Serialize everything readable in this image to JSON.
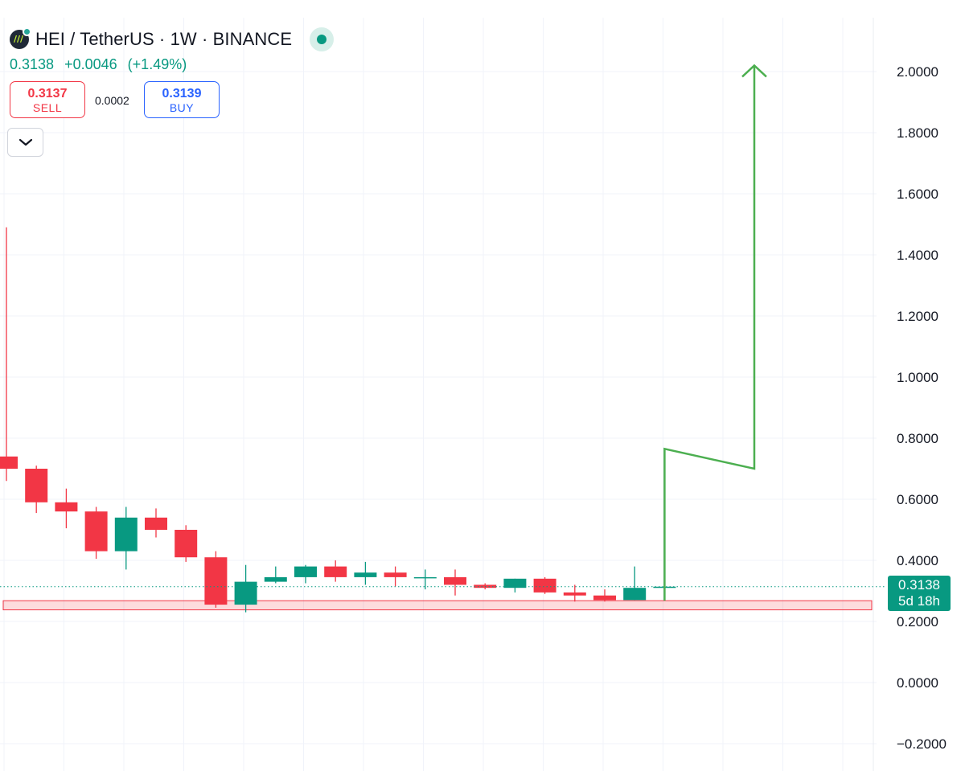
{
  "header": {
    "title": "HEI / TetherUS · 1W · BINANCE",
    "last": "0.3138",
    "change": "+0.0046",
    "change_pct": "(+1.49%)",
    "sell_price": "0.3137",
    "sell_label": "SELL",
    "spread": "0.0002",
    "buy_price": "0.3139",
    "buy_label": "BUY"
  },
  "icons": {
    "logo": "hei-coin-logo",
    "status": "market-open-dot",
    "collapse": "chevron-down-icon"
  },
  "price_tag": {
    "price": "0.3138",
    "countdown": "5d 18h"
  },
  "colors": {
    "up": "#089981",
    "down": "#f23645",
    "drawing": "#4caf50",
    "zone": "#f23645"
  },
  "chart_data": {
    "type": "candlestick",
    "symbol": "HEI / TetherUS",
    "interval": "1W",
    "exchange": "BINANCE",
    "ylim": [
      -0.22,
      2.23
    ],
    "yticks": [
      "2.0000",
      "1.8000",
      "1.6000",
      "1.4000",
      "1.2000",
      "1.0000",
      "0.8000",
      "0.6000",
      "0.4000",
      "0.2000",
      "0.0000",
      "−0.2000"
    ],
    "ytick_values": [
      2.0,
      1.8,
      1.6,
      1.4,
      1.2,
      1.0,
      0.8,
      0.6,
      0.4,
      0.2,
      0.0,
      -0.2
    ],
    "last_price": 0.3138,
    "candles": [
      {
        "i": 0,
        "open": 0.74,
        "high": 1.49,
        "low": 0.66,
        "close": 0.7
      },
      {
        "i": 1,
        "open": 0.7,
        "high": 0.71,
        "low": 0.555,
        "close": 0.59
      },
      {
        "i": 2,
        "open": 0.59,
        "high": 0.635,
        "low": 0.505,
        "close": 0.56
      },
      {
        "i": 3,
        "open": 0.56,
        "high": 0.575,
        "low": 0.405,
        "close": 0.43
      },
      {
        "i": 4,
        "open": 0.43,
        "high": 0.575,
        "low": 0.37,
        "close": 0.54
      },
      {
        "i": 5,
        "open": 0.54,
        "high": 0.57,
        "low": 0.475,
        "close": 0.5
      },
      {
        "i": 6,
        "open": 0.5,
        "high": 0.515,
        "low": 0.395,
        "close": 0.41
      },
      {
        "i": 7,
        "open": 0.41,
        "high": 0.43,
        "low": 0.245,
        "close": 0.255
      },
      {
        "i": 8,
        "open": 0.255,
        "high": 0.385,
        "low": 0.23,
        "close": 0.33
      },
      {
        "i": 9,
        "open": 0.33,
        "high": 0.38,
        "low": 0.325,
        "close": 0.345
      },
      {
        "i": 10,
        "open": 0.345,
        "high": 0.385,
        "low": 0.325,
        "close": 0.38
      },
      {
        "i": 11,
        "open": 0.38,
        "high": 0.4,
        "low": 0.33,
        "close": 0.345
      },
      {
        "i": 12,
        "open": 0.345,
        "high": 0.395,
        "low": 0.32,
        "close": 0.36
      },
      {
        "i": 13,
        "open": 0.36,
        "high": 0.38,
        "low": 0.315,
        "close": 0.345
      },
      {
        "i": 14,
        "open": 0.345,
        "high": 0.37,
        "low": 0.305,
        "close": 0.345
      },
      {
        "i": 15,
        "open": 0.345,
        "high": 0.37,
        "low": 0.285,
        "close": 0.32
      },
      {
        "i": 16,
        "open": 0.32,
        "high": 0.325,
        "low": 0.305,
        "close": 0.31
      },
      {
        "i": 17,
        "open": 0.31,
        "high": 0.34,
        "low": 0.295,
        "close": 0.34
      },
      {
        "i": 18,
        "open": 0.34,
        "high": 0.345,
        "low": 0.29,
        "close": 0.295
      },
      {
        "i": 19,
        "open": 0.295,
        "high": 0.32,
        "low": 0.265,
        "close": 0.285
      },
      {
        "i": 20,
        "open": 0.285,
        "high": 0.305,
        "low": 0.265,
        "close": 0.27
      },
      {
        "i": 21,
        "open": 0.27,
        "high": 0.38,
        "low": 0.27,
        "close": 0.31
      },
      {
        "i": 22,
        "open": 0.31,
        "high": 0.32,
        "low": 0.305,
        "close": 0.3138
      }
    ],
    "support_zone": {
      "from": 0.238,
      "to": 0.268
    },
    "projection_path": [
      {
        "i": 22,
        "price": 0.268
      },
      {
        "i": 22,
        "price": 0.765
      },
      {
        "i": 25,
        "price": 0.7
      },
      {
        "i": 25,
        "price": 2.02
      }
    ],
    "grid": true
  }
}
